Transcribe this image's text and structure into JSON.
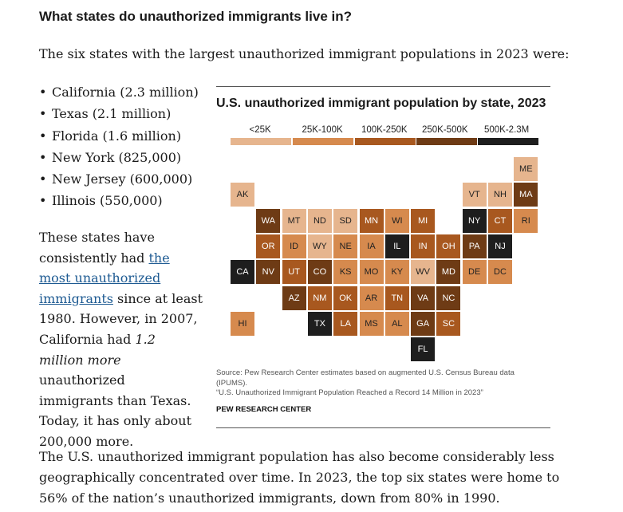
{
  "heading": "What states do unauthorized immigrants live in?",
  "intro": "The six states with the largest unauthorized immigrant populations in 2023 were:",
  "states_list": [
    "California (2.3 million)",
    "Texas (2.1 million)",
    "Florida (1.6 million)",
    "New York (825,000)",
    "New Jersey (600,000)",
    "Illinois (550,000)"
  ],
  "side_para": {
    "before_link": "These states have consistently had ",
    "link": "the most unauthorized immigrants",
    "after_link": " since at least 1980. However, in 2007, California had ",
    "emph": "1.2 million more",
    "after_emph": " unauthorized immigrants than Texas. Today, it has only about 200,000 more."
  },
  "bottom_para": "The U.S. unauthorized immigrant population has also become considerably less geographically concentrated over time. In 2023, the top six states were home to 56% of the nation’s unauthorized immigrants, down from 80% in 1990.",
  "chart": {
    "title": "U.S. unauthorized immigrant population by state, 2023",
    "source_line1": "Source: Pew Research Center estimates based on augmented U.S. Census Bureau data (IPUMS).",
    "source_line2": "“U.S. Unauthorized Immigrant Population Reached a Record 14 Million in 2023”",
    "credit": "PEW RESEARCH CENTER"
  },
  "chart_data": {
    "type": "tile-map",
    "title": "U.S. unauthorized immigrant population by state, 2023",
    "legend": [
      {
        "label": "<25K",
        "color": "#e6b58e",
        "text_color": "#222222"
      },
      {
        "label": "25K-100K",
        "color": "#d68a4e",
        "text_color": "#222222"
      },
      {
        "label": "100K-250K",
        "color": "#a8581f",
        "text_color": "#ffffff"
      },
      {
        "label": "250K-500K",
        "color": "#6e3b15",
        "text_color": "#ffffff"
      },
      {
        "label": "500K-2.3M",
        "color": "#1e1e1e",
        "text_color": "#ffffff"
      }
    ],
    "states": [
      {
        "abbr": "ME",
        "bin": 0,
        "row": 0,
        "col": 11
      },
      {
        "abbr": "AK",
        "bin": 0,
        "row": 1,
        "col": 0
      },
      {
        "abbr": "VT",
        "bin": 0,
        "row": 1,
        "col": 9
      },
      {
        "abbr": "NH",
        "bin": 0,
        "row": 1,
        "col": 10
      },
      {
        "abbr": "MA",
        "bin": 3,
        "row": 1,
        "col": 11
      },
      {
        "abbr": "WA",
        "bin": 3,
        "row": 2,
        "col": 1
      },
      {
        "abbr": "MT",
        "bin": 0,
        "row": 2,
        "col": 2
      },
      {
        "abbr": "ND",
        "bin": 0,
        "row": 2,
        "col": 3
      },
      {
        "abbr": "SD",
        "bin": 0,
        "row": 2,
        "col": 4
      },
      {
        "abbr": "MN",
        "bin": 2,
        "row": 2,
        "col": 5
      },
      {
        "abbr": "WI",
        "bin": 1,
        "row": 2,
        "col": 6
      },
      {
        "abbr": "MI",
        "bin": 2,
        "row": 2,
        "col": 7
      },
      {
        "abbr": "NY",
        "bin": 4,
        "row": 2,
        "col": 9
      },
      {
        "abbr": "CT",
        "bin": 2,
        "row": 2,
        "col": 10
      },
      {
        "abbr": "RI",
        "bin": 1,
        "row": 2,
        "col": 11
      },
      {
        "abbr": "OR",
        "bin": 2,
        "row": 3,
        "col": 1
      },
      {
        "abbr": "ID",
        "bin": 1,
        "row": 3,
        "col": 2
      },
      {
        "abbr": "WY",
        "bin": 0,
        "row": 3,
        "col": 3
      },
      {
        "abbr": "NE",
        "bin": 1,
        "row": 3,
        "col": 4
      },
      {
        "abbr": "IA",
        "bin": 1,
        "row": 3,
        "col": 5
      },
      {
        "abbr": "IL",
        "bin": 4,
        "row": 3,
        "col": 6
      },
      {
        "abbr": "IN",
        "bin": 2,
        "row": 3,
        "col": 7
      },
      {
        "abbr": "OH",
        "bin": 2,
        "row": 3,
        "col": 8
      },
      {
        "abbr": "PA",
        "bin": 3,
        "row": 3,
        "col": 9
      },
      {
        "abbr": "NJ",
        "bin": 4,
        "row": 3,
        "col": 10
      },
      {
        "abbr": "CA",
        "bin": 4,
        "row": 4,
        "col": 0
      },
      {
        "abbr": "NV",
        "bin": 3,
        "row": 4,
        "col": 1
      },
      {
        "abbr": "UT",
        "bin": 2,
        "row": 4,
        "col": 2
      },
      {
        "abbr": "CO",
        "bin": 3,
        "row": 4,
        "col": 3
      },
      {
        "abbr": "KS",
        "bin": 1,
        "row": 4,
        "col": 4
      },
      {
        "abbr": "MO",
        "bin": 1,
        "row": 4,
        "col": 5
      },
      {
        "abbr": "KY",
        "bin": 1,
        "row": 4,
        "col": 6
      },
      {
        "abbr": "WV",
        "bin": 0,
        "row": 4,
        "col": 7
      },
      {
        "abbr": "MD",
        "bin": 3,
        "row": 4,
        "col": 8
      },
      {
        "abbr": "DE",
        "bin": 1,
        "row": 4,
        "col": 9
      },
      {
        "abbr": "DC",
        "bin": 1,
        "row": 4,
        "col": 10
      },
      {
        "abbr": "AZ",
        "bin": 3,
        "row": 5,
        "col": 2
      },
      {
        "abbr": "NM",
        "bin": 2,
        "row": 5,
        "col": 3
      },
      {
        "abbr": "OK",
        "bin": 2,
        "row": 5,
        "col": 4
      },
      {
        "abbr": "AR",
        "bin": 1,
        "row": 5,
        "col": 5
      },
      {
        "abbr": "TN",
        "bin": 2,
        "row": 5,
        "col": 6
      },
      {
        "abbr": "VA",
        "bin": 3,
        "row": 5,
        "col": 7
      },
      {
        "abbr": "NC",
        "bin": 3,
        "row": 5,
        "col": 8
      },
      {
        "abbr": "HI",
        "bin": 1,
        "row": 6,
        "col": 0
      },
      {
        "abbr": "TX",
        "bin": 4,
        "row": 6,
        "col": 3
      },
      {
        "abbr": "LA",
        "bin": 2,
        "row": 6,
        "col": 4
      },
      {
        "abbr": "MS",
        "bin": 1,
        "row": 6,
        "col": 5
      },
      {
        "abbr": "AL",
        "bin": 1,
        "row": 6,
        "col": 6
      },
      {
        "abbr": "GA",
        "bin": 3,
        "row": 6,
        "col": 7
      },
      {
        "abbr": "SC",
        "bin": 2,
        "row": 6,
        "col": 8
      },
      {
        "abbr": "FL",
        "bin": 4,
        "row": 7,
        "col": 7
      }
    ]
  }
}
